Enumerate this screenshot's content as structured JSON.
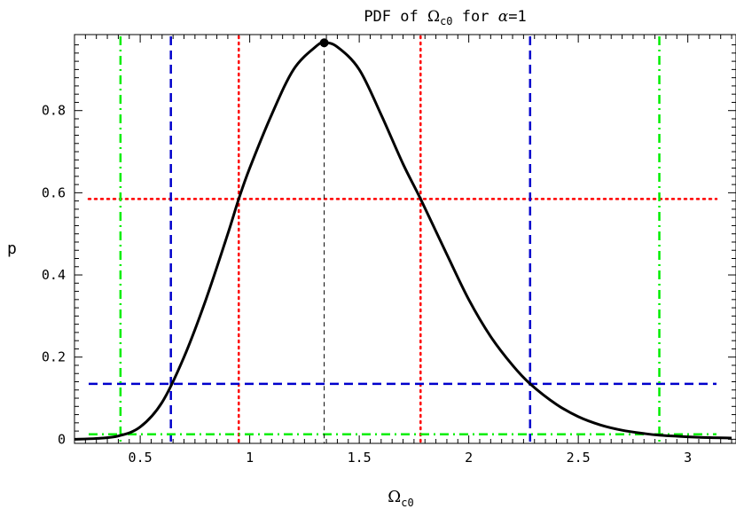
{
  "chart_data": {
    "type": "line",
    "title": {
      "prefix": "PDF of ",
      "symbol": "Ω",
      "subscript": "c0",
      "middle": " for ",
      "param": "α",
      "suffix": "=1"
    },
    "xlabel": {
      "symbol": "Ω",
      "subscript": "c0"
    },
    "ylabel": "p",
    "xlim": [
      0.2,
      3.22
    ],
    "ylim": [
      -0.01,
      0.985
    ],
    "x_ticks": [
      0.5,
      1,
      1.5,
      2,
      2.5,
      3
    ],
    "x_tick_labels": [
      "0.5",
      "1",
      "1.5",
      "2",
      "2.5",
      "3"
    ],
    "y_ticks": [
      0,
      0.2,
      0.4,
      0.6,
      0.8
    ],
    "y_tick_labels": [
      "0",
      "0.2",
      "0.4",
      "0.6",
      "0.8"
    ],
    "grid": false,
    "curve": {
      "color": "#000000",
      "points": [
        [
          0.2,
          0.0
        ],
        [
          0.3,
          0.002
        ],
        [
          0.4,
          0.008
        ],
        [
          0.5,
          0.03
        ],
        [
          0.6,
          0.09
        ],
        [
          0.7,
          0.2
        ],
        [
          0.8,
          0.34
        ],
        [
          0.9,
          0.5
        ],
        [
          0.95,
          0.585
        ],
        [
          1.0,
          0.66
        ],
        [
          1.1,
          0.79
        ],
        [
          1.2,
          0.9
        ],
        [
          1.3,
          0.955
        ],
        [
          1.34,
          0.965
        ],
        [
          1.4,
          0.955
        ],
        [
          1.5,
          0.9
        ],
        [
          1.6,
          0.79
        ],
        [
          1.7,
          0.67
        ],
        [
          1.78,
          0.585
        ],
        [
          1.9,
          0.45
        ],
        [
          2.0,
          0.34
        ],
        [
          2.1,
          0.25
        ],
        [
          2.2,
          0.18
        ],
        [
          2.28,
          0.135
        ],
        [
          2.4,
          0.085
        ],
        [
          2.5,
          0.055
        ],
        [
          2.6,
          0.035
        ],
        [
          2.7,
          0.022
        ],
        [
          2.8,
          0.014
        ],
        [
          2.87,
          0.01
        ],
        [
          3.0,
          0.006
        ],
        [
          3.1,
          0.004
        ],
        [
          3.2,
          0.003
        ]
      ]
    },
    "peak": {
      "x": 1.34,
      "y": 0.965
    },
    "levels": [
      {
        "color": "#ff0000",
        "style": "dotted",
        "y": 0.585,
        "x_low": 0.95,
        "x_high": 1.78
      },
      {
        "color": "#0000cc",
        "style": "dashed",
        "y": 0.135,
        "x_low": 0.64,
        "x_high": 2.28
      },
      {
        "color": "#00ee00",
        "style": "dashdot",
        "y": 0.012,
        "x_low": 0.41,
        "x_high": 2.87
      }
    ]
  }
}
